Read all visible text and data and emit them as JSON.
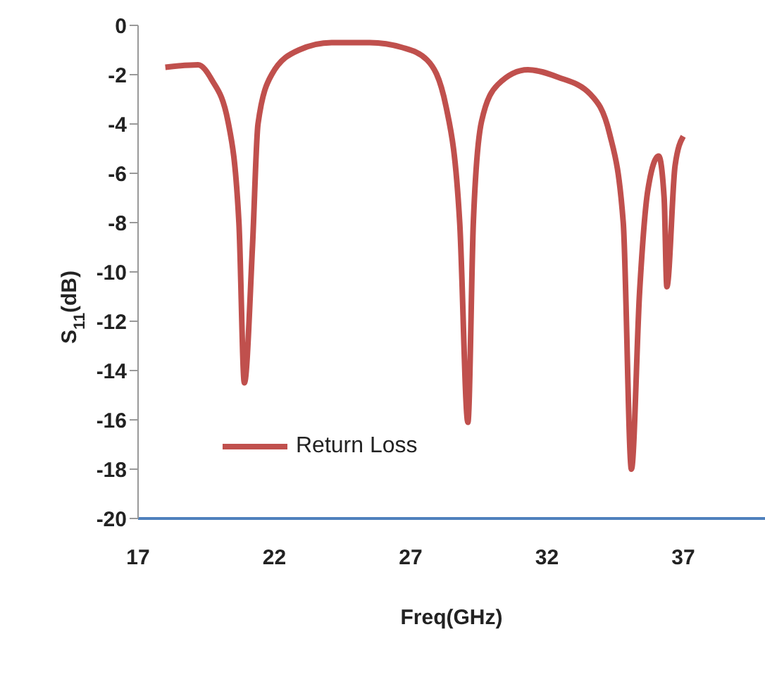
{
  "chart_data": {
    "type": "line",
    "xlabel": "Freq(GHz)",
    "ylabel": "S$_{11}$(dB)",
    "xlim": [
      17,
      40
    ],
    "xticks": [
      17,
      22,
      27,
      32,
      37
    ],
    "ylim": [
      -20,
      0
    ],
    "yticks": [
      -20,
      -18,
      -16,
      -14,
      -12,
      -10,
      -8,
      -6,
      -4,
      -2,
      0
    ],
    "grid": false,
    "legend": "bottom left",
    "marker": "none",
    "line_style": "solid",
    "series": [
      {
        "name": "Return Loss",
        "color": "#c0504d",
        "x": [
          18.0,
          19.2,
          19.7,
          20.3,
          20.7,
          20.9,
          21.2,
          21.4,
          21.9,
          22.9,
          24.1,
          25.5,
          26.7,
          27.6,
          28.3,
          28.8,
          29.1,
          29.3,
          29.6,
          30.2,
          31.3,
          32.4,
          33.6,
          34.3,
          34.8,
          35.1,
          35.4,
          35.7,
          36.1,
          36.3,
          36.4,
          36.7,
          37.0
        ],
        "values": [
          -1.7,
          -1.6,
          -2.2,
          -3.9,
          -8.0,
          -14.5,
          -8.9,
          -4.0,
          -2.0,
          -1.0,
          -0.7,
          -0.7,
          -0.9,
          -1.4,
          -3.3,
          -8.0,
          -16.1,
          -8.0,
          -3.9,
          -2.4,
          -1.8,
          -2.1,
          -2.8,
          -4.4,
          -8.0,
          -18.0,
          -10.8,
          -6.7,
          -5.3,
          -7.0,
          -10.6,
          -5.7,
          -4.5
        ]
      }
    ]
  }
}
